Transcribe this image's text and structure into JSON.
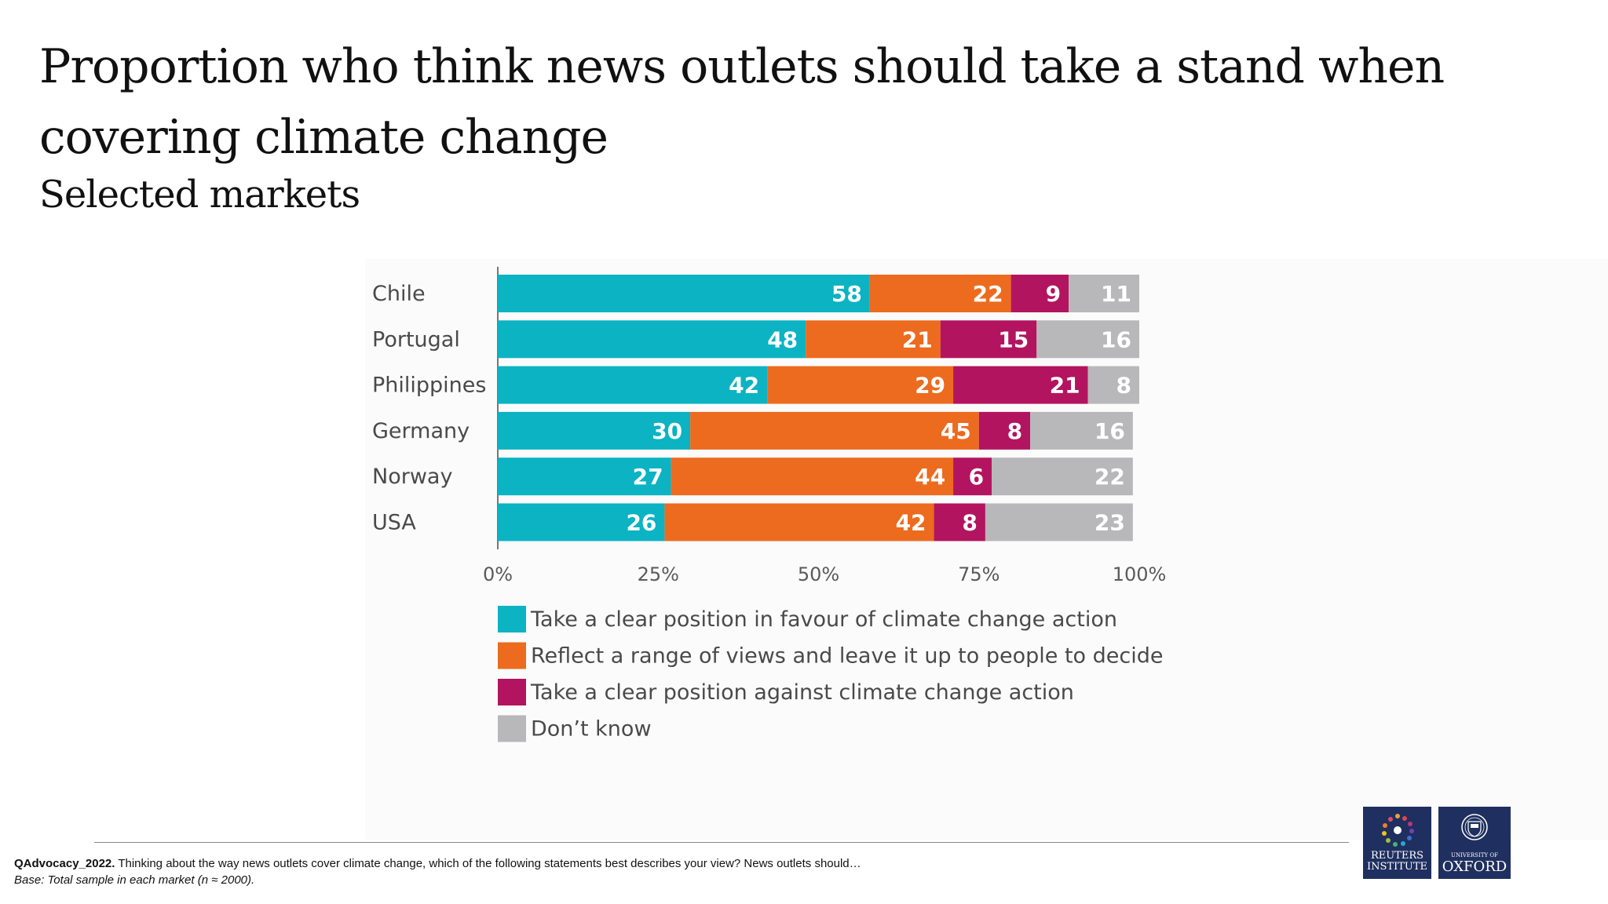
{
  "header": {
    "title": "Proportion who think news outlets should take a stand when covering climate change",
    "subtitle": "Selected markets"
  },
  "chart_data": {
    "type": "bar",
    "orientation": "horizontal",
    "stacked": true,
    "categories": [
      "Chile",
      "Portugal",
      "Philippines",
      "Germany",
      "Norway",
      "USA"
    ],
    "series": [
      {
        "name": "Take a clear position in favour of climate change action",
        "color": "#0bb3c3",
        "values": [
          58,
          48,
          42,
          30,
          27,
          26
        ]
      },
      {
        "name": "Reflect a range of views and leave it up to people to decide",
        "color": "#ec6b1f",
        "values": [
          22,
          21,
          29,
          45,
          44,
          42
        ]
      },
      {
        "name": "Take a clear position against climate change action",
        "color": "#b3145f",
        "values": [
          9,
          15,
          21,
          8,
          6,
          8
        ]
      },
      {
        "name": "Don’t know",
        "color": "#b8b7b9",
        "values": [
          11,
          16,
          8,
          16,
          22,
          23
        ]
      }
    ],
    "xlim": [
      0,
      100
    ],
    "xticks": [
      "0%",
      "25%",
      "50%",
      "75%",
      "100%"
    ],
    "grid": false,
    "legend_position": "bottom"
  },
  "footer": {
    "question_code": "QAdvocacy_2022.",
    "question_text": "Thinking about the way news outlets cover climate change, which of the following statements best describes your view? News outlets should…",
    "base": "Base: Total sample in each market (n ≈ 2000)."
  },
  "logos": {
    "reuters_line1": "REUTERS",
    "reuters_line2": "INSTITUTE",
    "oxford_small": "UNIVERSITY OF",
    "oxford_big": "OXFORD"
  }
}
